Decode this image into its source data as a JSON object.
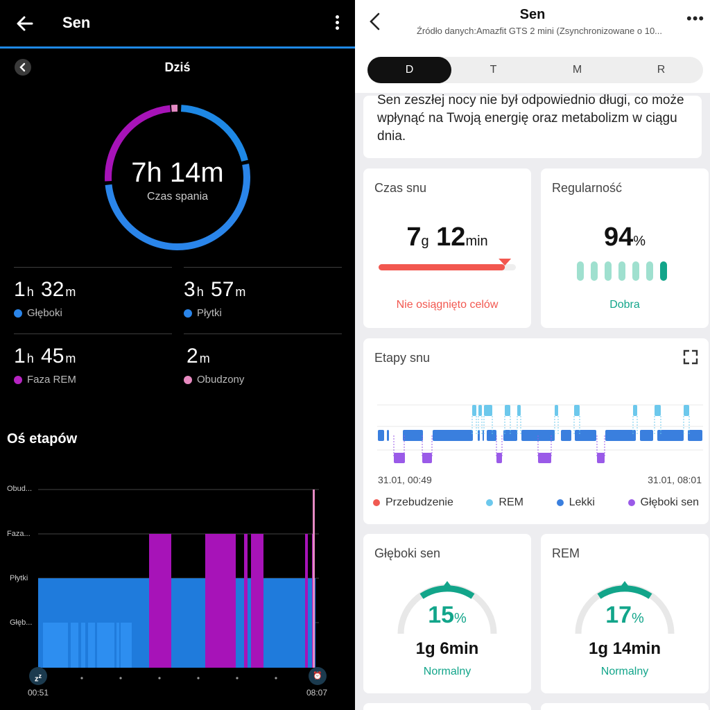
{
  "left": {
    "title": "Sen",
    "day_label": "Dziś",
    "total": {
      "value": "7h 14m",
      "label": "Czas spania"
    },
    "stats": [
      {
        "h": "1",
        "h_unit": "h",
        "m": "32",
        "m_unit": "m",
        "label": "Głęboki",
        "color": "#2a85ea"
      },
      {
        "h": "3",
        "h_unit": "h",
        "m": "57",
        "m_unit": "m",
        "label": "Płytki",
        "color": "#2a85ea"
      },
      {
        "h": "1",
        "h_unit": "h",
        "m": "45",
        "m_unit": "m",
        "label": "Faza REM",
        "color": "#b624c2"
      },
      {
        "h": "",
        "h_unit": "",
        "m": "2",
        "m_unit": "m",
        "label": "Obudzony",
        "color": "#e78ac0"
      }
    ],
    "section_title": "Oś etapów",
    "y_labels": [
      "Obud...",
      "Faza...",
      "Płytki",
      "Głęb..."
    ],
    "start_time": "00:51",
    "end_time": "08:07",
    "colors": {
      "accent": "#1e88e5",
      "light": "#1f7bdc",
      "deep": "#2d8ef0",
      "rem": "#a713b8",
      "awake": "#e48ac3"
    }
  },
  "right": {
    "title": "Sen",
    "source": "Źródło danych:Amazfit GTS 2 mini (Zsynchronizowane o 10...",
    "tabs": [
      "D",
      "T",
      "M",
      "R"
    ],
    "active_tab": 0,
    "message": "Sen zeszłej nocy nie był odpowiednio długi, co może wpłynąć na Twoją energię oraz metabolizm w ciągu dnia.",
    "sleep_time": {
      "title": "Czas snu",
      "h": "7",
      "h_unit": "g",
      "m": "12",
      "m_unit": "min",
      "progress": 0.92,
      "status": "Nie osiągnięto celów"
    },
    "regularity": {
      "title": "Regularność",
      "value": "94",
      "unit": "%",
      "level": 7,
      "status": "Dobra"
    },
    "stages": {
      "title": "Etapy snu",
      "start": "31.01, 00:49",
      "end": "31.01, 08:01",
      "legend": [
        {
          "label": "Przebudzenie",
          "color": "#f05a52"
        },
        {
          "label": "REM",
          "color": "#6cc8ec"
        },
        {
          "label": "Lekki",
          "color": "#3a7fde"
        },
        {
          "label": "Głęboki sen",
          "color": "#9a5ae8"
        }
      ]
    },
    "deep": {
      "title": "Głęboki sen",
      "value": "15",
      "unit": "%",
      "duration": "1g 6min",
      "status": "Normalny"
    },
    "rem": {
      "title": "REM",
      "value": "17",
      "unit": "%",
      "duration": "1g 14min",
      "status": "Normalny"
    },
    "colors": {
      "red": "#f2574f",
      "teal": "#12a58a",
      "mint": "#9fe0cf"
    }
  }
}
